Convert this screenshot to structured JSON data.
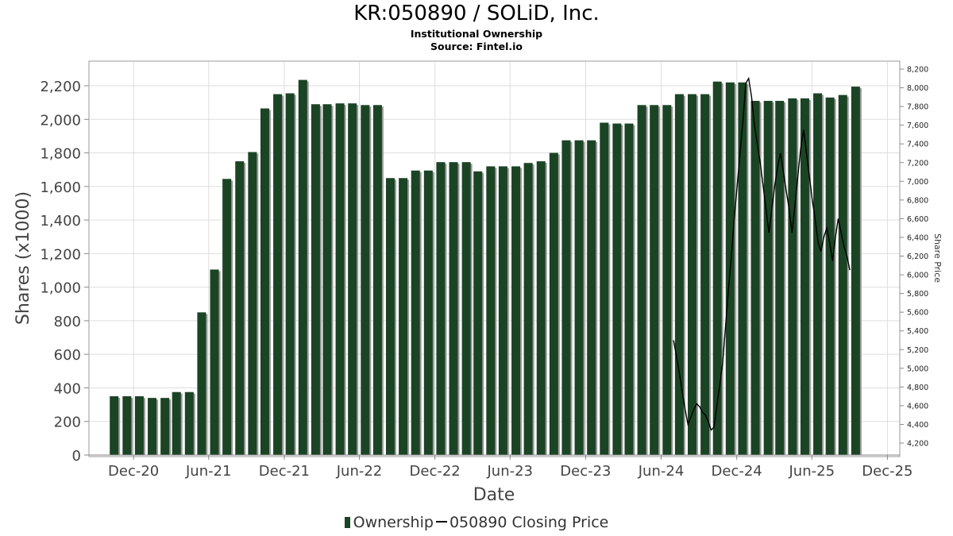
{
  "title": "KR:050890 / SOLiD, Inc.",
  "subtitle": "Institutional Ownership",
  "source": "Source: Fintel.io",
  "legend": {
    "ownership": "Ownership",
    "price": "050890 Closing Price"
  },
  "colors": {
    "bar": "#1b4425",
    "bar_shadow": "#9a9a9a",
    "line": "#000000",
    "grid": "#dddddd"
  },
  "chart_data": {
    "type": "bar",
    "xlabel": "Date",
    "ylabel": "Shares (x1000)",
    "y2label": "Share Price",
    "ylim": [
      0,
      2300
    ],
    "y2lim": [
      4100,
      8250
    ],
    "xlim": [
      "2020-08-15",
      "2025-12-31"
    ],
    "yticks": [
      "0",
      "200",
      "400",
      "600",
      "800",
      "1,000",
      "1,200",
      "1,400",
      "1,600",
      "1,800",
      "2,000",
      "2,200"
    ],
    "y2ticks": [
      "4,200",
      "4,400",
      "4,600",
      "4,800",
      "5,000",
      "5,200",
      "5,400",
      "5,600",
      "5,800",
      "6,000",
      "6,200",
      "6,400",
      "6,600",
      "6,800",
      "7,000",
      "7,200",
      "7,400",
      "7,600",
      "7,800",
      "8,000",
      "8,200"
    ],
    "xticks": [
      "Dec-20",
      "Jun-21",
      "Dec-21",
      "Jun-22",
      "Dec-22",
      "Jun-23",
      "Dec-23",
      "Jun-24",
      "Dec-24",
      "Jun-25",
      "Dec-25"
    ],
    "grid": true,
    "legend_position": "bottom-center",
    "series": [
      {
        "name": "Ownership",
        "values": [
          [
            "2020-10-15",
            350
          ],
          [
            "2020-11-15",
            350
          ],
          [
            "2020-12-15",
            350
          ],
          [
            "2021-01-15",
            340
          ],
          [
            "2021-02-15",
            340
          ],
          [
            "2021-03-15",
            375
          ],
          [
            "2021-04-15",
            375
          ],
          [
            "2021-05-15",
            850
          ],
          [
            "2021-06-15",
            1105
          ],
          [
            "2021-07-15",
            1645
          ],
          [
            "2021-08-15",
            1750
          ],
          [
            "2021-09-15",
            1805
          ],
          [
            "2021-10-15",
            2065
          ],
          [
            "2021-11-15",
            2150
          ],
          [
            "2021-12-15",
            2155
          ],
          [
            "2022-01-15",
            2235
          ],
          [
            "2022-02-15",
            2090
          ],
          [
            "2022-03-15",
            2090
          ],
          [
            "2022-04-15",
            2095
          ],
          [
            "2022-05-15",
            2095
          ],
          [
            "2022-06-15",
            2085
          ],
          [
            "2022-07-15",
            2085
          ],
          [
            "2022-08-15",
            1650
          ],
          [
            "2022-09-15",
            1650
          ],
          [
            "2022-10-15",
            1695
          ],
          [
            "2022-11-15",
            1695
          ],
          [
            "2022-12-15",
            1745
          ],
          [
            "2023-01-15",
            1745
          ],
          [
            "2023-02-15",
            1745
          ],
          [
            "2023-03-15",
            1690
          ],
          [
            "2023-04-15",
            1720
          ],
          [
            "2023-05-15",
            1720
          ],
          [
            "2023-06-15",
            1720
          ],
          [
            "2023-07-15",
            1740
          ],
          [
            "2023-08-15",
            1750
          ],
          [
            "2023-09-15",
            1800
          ],
          [
            "2023-10-15",
            1875
          ],
          [
            "2023-11-15",
            1875
          ],
          [
            "2023-12-15",
            1875
          ],
          [
            "2024-01-15",
            1980
          ],
          [
            "2024-02-15",
            1975
          ],
          [
            "2024-03-15",
            1975
          ],
          [
            "2024-04-15",
            2085
          ],
          [
            "2024-05-15",
            2085
          ],
          [
            "2024-06-15",
            2085
          ],
          [
            "2024-07-15",
            2150
          ],
          [
            "2024-08-15",
            2150
          ],
          [
            "2024-09-15",
            2150
          ],
          [
            "2024-10-15",
            2225
          ],
          [
            "2024-11-15",
            2220
          ],
          [
            "2024-12-15",
            2220
          ],
          [
            "2025-01-15",
            2110
          ],
          [
            "2025-02-15",
            2110
          ],
          [
            "2025-03-15",
            2110
          ],
          [
            "2025-04-15",
            2125
          ],
          [
            "2025-05-15",
            2125
          ],
          [
            "2025-06-15",
            2155
          ],
          [
            "2025-07-15",
            2130
          ],
          [
            "2025-08-15",
            2145
          ],
          [
            "2025-09-15",
            2195
          ]
        ]
      },
      {
        "name": "050890 Closing Price",
        "axis": "right",
        "values": [
          [
            "2024-07-01",
            5300
          ],
          [
            "2024-07-08",
            5130
          ],
          [
            "2024-07-15",
            4950
          ],
          [
            "2024-07-22",
            4750
          ],
          [
            "2024-07-29",
            4560
          ],
          [
            "2024-08-05",
            4400
          ],
          [
            "2024-08-12",
            4480
          ],
          [
            "2024-08-19",
            4560
          ],
          [
            "2024-08-26",
            4620
          ],
          [
            "2024-09-02",
            4590
          ],
          [
            "2024-09-09",
            4530
          ],
          [
            "2024-09-16",
            4500
          ],
          [
            "2024-09-23",
            4430
          ],
          [
            "2024-09-30",
            4340
          ],
          [
            "2024-10-07",
            4370
          ],
          [
            "2024-10-14",
            4600
          ],
          [
            "2024-10-21",
            4820
          ],
          [
            "2024-10-28",
            5060
          ],
          [
            "2024-11-04",
            5450
          ],
          [
            "2024-11-11",
            5850
          ],
          [
            "2024-11-18",
            6200
          ],
          [
            "2024-11-25",
            6600
          ],
          [
            "2024-12-02",
            6950
          ],
          [
            "2024-12-09",
            7300
          ],
          [
            "2024-12-16",
            7650
          ],
          [
            "2024-12-23",
            8050
          ],
          [
            "2024-12-30",
            8100
          ],
          [
            "2025-01-06",
            7900
          ],
          [
            "2025-01-13",
            7600
          ],
          [
            "2025-01-20",
            7400
          ],
          [
            "2025-01-27",
            7200
          ],
          [
            "2025-02-03",
            6950
          ],
          [
            "2025-02-10",
            6700
          ],
          [
            "2025-02-17",
            6450
          ],
          [
            "2025-02-24",
            6700
          ],
          [
            "2025-03-03",
            6950
          ],
          [
            "2025-03-10",
            7150
          ],
          [
            "2025-03-17",
            7300
          ],
          [
            "2025-03-24",
            7100
          ],
          [
            "2025-03-31",
            6900
          ],
          [
            "2025-04-07",
            6700
          ],
          [
            "2025-04-14",
            6450
          ],
          [
            "2025-04-21",
            6750
          ],
          [
            "2025-04-28",
            7050
          ],
          [
            "2025-05-05",
            7350
          ],
          [
            "2025-05-12",
            7550
          ],
          [
            "2025-05-19",
            7300
          ],
          [
            "2025-05-26",
            7050
          ],
          [
            "2025-06-02",
            6800
          ],
          [
            "2025-06-09",
            6600
          ],
          [
            "2025-06-16",
            6350
          ],
          [
            "2025-06-23",
            6250
          ],
          [
            "2025-06-30",
            6400
          ],
          [
            "2025-07-07",
            6500
          ],
          [
            "2025-07-14",
            6350
          ],
          [
            "2025-07-21",
            6150
          ],
          [
            "2025-07-28",
            6400
          ],
          [
            "2025-08-04",
            6600
          ],
          [
            "2025-08-11",
            6450
          ],
          [
            "2025-08-18",
            6300
          ],
          [
            "2025-08-25",
            6200
          ],
          [
            "2025-09-01",
            6050
          ]
        ]
      }
    ]
  }
}
